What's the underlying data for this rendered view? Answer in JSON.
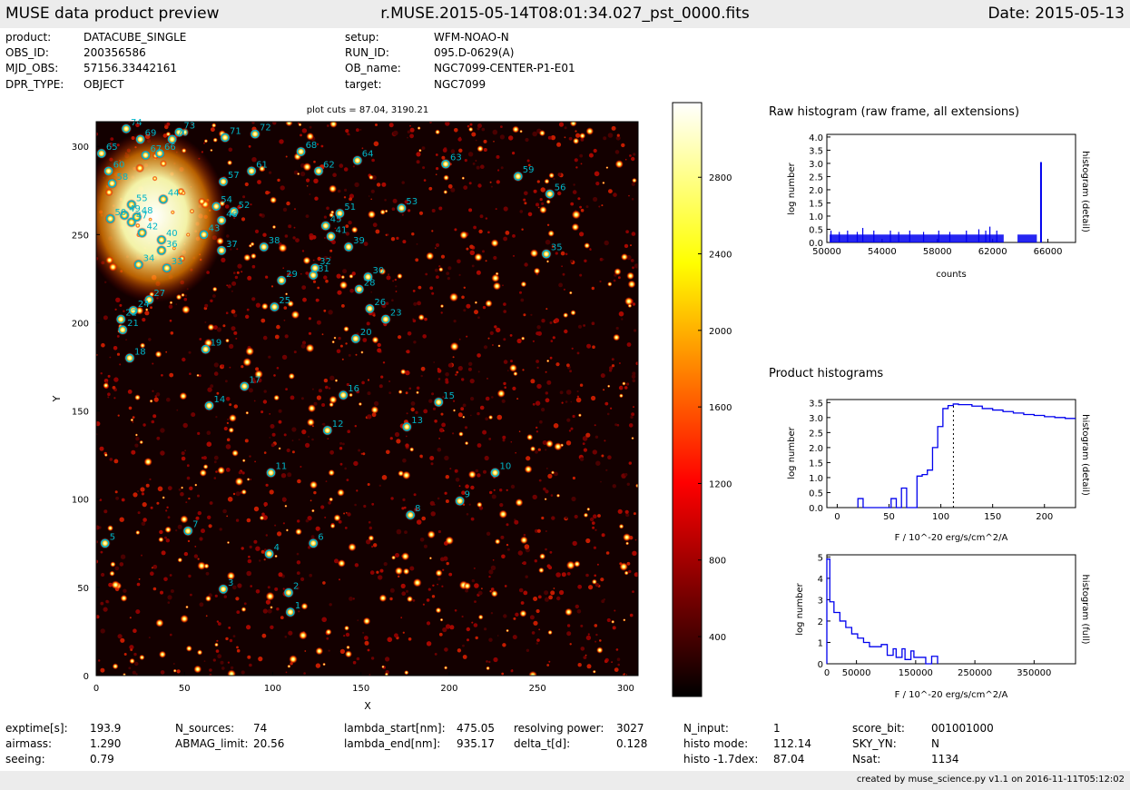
{
  "header": {
    "left": "MUSE data product preview",
    "center": "r.MUSE.2015-05-14T08:01:34.027_pst_0000.fits",
    "right": "Date: 2015-05-13"
  },
  "meta": {
    "left": [
      {
        "k": "product:",
        "v": "DATACUBE_SINGLE"
      },
      {
        "k": "OBS_ID:",
        "v": "200356586"
      },
      {
        "k": "MJD_OBS:",
        "v": "57156.33442161"
      },
      {
        "k": "DPR_TYPE:",
        "v": "OBJECT"
      }
    ],
    "right": [
      {
        "k": "setup:",
        "v": "WFM-NOAO-N"
      },
      {
        "k": "RUN_ID:",
        "v": "095.D-0629(A)"
      },
      {
        "k": "OB_name:",
        "v": "NGC7099-CENTER-P1-E01"
      },
      {
        "k": "target:",
        "v": "NGC7099"
      }
    ]
  },
  "footer_stats": [
    {
      "k": "exptime[s]:",
      "v": "193.9"
    },
    {
      "k": "airmass:",
      "v": "1.290"
    },
    {
      "k": "seeing:",
      "v": "0.79"
    },
    {
      "k": "N_sources:",
      "v": "74"
    },
    {
      "k": "ABMAG_limit:",
      "v": "20.56"
    },
    {
      "k": "lambda_start[nm]:",
      "v": "475.05"
    },
    {
      "k": "lambda_end[nm]:",
      "v": "935.17"
    },
    {
      "k": "resolving power:",
      "v": "3027"
    },
    {
      "k": "delta_t[d]:",
      "v": "0.128"
    },
    {
      "k": "N_input:",
      "v": "1"
    },
    {
      "k": "histo mode:",
      "v": "112.14"
    },
    {
      "k": "histo -1.7dex:",
      "v": "87.04"
    },
    {
      "k": "score_bit:",
      "v": "001001000"
    },
    {
      "k": "SKY_YN:",
      "v": "N"
    },
    {
      "k": "Nsat:",
      "v": "1134"
    }
  ],
  "credit": "created by muse_science.py v1.1 on 2016-11-11T05:12:02",
  "colors": {
    "marker": "#00b5c8",
    "histogram": "#0000ee",
    "bar_bg": "#ececec"
  },
  "chart_data": [
    {
      "type": "heatmap",
      "title": "plot cuts = 87.04, 3190.21",
      "xlabel": "X",
      "ylabel": "Y",
      "xlim": [
        0,
        307
      ],
      "ylim": [
        0,
        314
      ],
      "xticks": [
        0,
        50,
        100,
        150,
        200,
        250,
        300
      ],
      "yticks": [
        0,
        50,
        100,
        150,
        200,
        250,
        300
      ],
      "colormap": "hot",
      "colorbar": {
        "min": 87.04,
        "max": 3190.21,
        "ticks": [
          400,
          800,
          1200,
          1600,
          2000,
          2400,
          2800
        ]
      },
      "sources": [
        {
          "id": 1,
          "x": 110,
          "y": 36
        },
        {
          "id": 2,
          "x": 109,
          "y": 47
        },
        {
          "id": 3,
          "x": 72,
          "y": 49
        },
        {
          "id": 4,
          "x": 98,
          "y": 69
        },
        {
          "id": 5,
          "x": 5,
          "y": 75
        },
        {
          "id": 6,
          "x": 123,
          "y": 75
        },
        {
          "id": 7,
          "x": 52,
          "y": 82
        },
        {
          "id": 8,
          "x": 178,
          "y": 91
        },
        {
          "id": 9,
          "x": 206,
          "y": 99
        },
        {
          "id": 10,
          "x": 226,
          "y": 115
        },
        {
          "id": 11,
          "x": 99,
          "y": 115
        },
        {
          "id": 12,
          "x": 131,
          "y": 139
        },
        {
          "id": 13,
          "x": 176,
          "y": 141
        },
        {
          "id": 14,
          "x": 64,
          "y": 153
        },
        {
          "id": 15,
          "x": 194,
          "y": 155
        },
        {
          "id": 16,
          "x": 140,
          "y": 159
        },
        {
          "id": 17,
          "x": 84,
          "y": 164
        },
        {
          "id": 18,
          "x": 19,
          "y": 180
        },
        {
          "id": 19,
          "x": 62,
          "y": 185
        },
        {
          "id": 20,
          "x": 147,
          "y": 191
        },
        {
          "id": 21,
          "x": 15,
          "y": 196
        },
        {
          "id": 22,
          "x": 14,
          "y": 202
        },
        {
          "id": 23,
          "x": 164,
          "y": 202
        },
        {
          "id": 24,
          "x": 21,
          "y": 207
        },
        {
          "id": 25,
          "x": 101,
          "y": 209
        },
        {
          "id": 26,
          "x": 155,
          "y": 208
        },
        {
          "id": 27,
          "x": 30,
          "y": 213
        },
        {
          "id": 28,
          "x": 149,
          "y": 219
        },
        {
          "id": 29,
          "x": 105,
          "y": 224
        },
        {
          "id": 30,
          "x": 154,
          "y": 226
        },
        {
          "id": 31,
          "x": 123,
          "y": 227
        },
        {
          "id": 32,
          "x": 124,
          "y": 231
        },
        {
          "id": 33,
          "x": 40,
          "y": 231
        },
        {
          "id": 34,
          "x": 24,
          "y": 233
        },
        {
          "id": 35,
          "x": 255,
          "y": 239
        },
        {
          "id": 36,
          "x": 37,
          "y": 241
        },
        {
          "id": 37,
          "x": 71,
          "y": 241
        },
        {
          "id": 38,
          "x": 95,
          "y": 243
        },
        {
          "id": 39,
          "x": 143,
          "y": 243
        },
        {
          "id": 40,
          "x": 37,
          "y": 247
        },
        {
          "id": 41,
          "x": 133,
          "y": 249
        },
        {
          "id": 42,
          "x": 26,
          "y": 251
        },
        {
          "id": 43,
          "x": 61,
          "y": 250
        },
        {
          "id": 44,
          "x": 38,
          "y": 270
        },
        {
          "id": 45,
          "x": 130,
          "y": 255
        },
        {
          "id": 46,
          "x": 71,
          "y": 258
        },
        {
          "id": 47,
          "x": 20,
          "y": 257
        },
        {
          "id": 48,
          "x": 23,
          "y": 260
        },
        {
          "id": 49,
          "x": 16,
          "y": 261
        },
        {
          "id": 50,
          "x": 8,
          "y": 259
        },
        {
          "id": 51,
          "x": 138,
          "y": 262
        },
        {
          "id": 52,
          "x": 78,
          "y": 263
        },
        {
          "id": 53,
          "x": 173,
          "y": 265
        },
        {
          "id": 54,
          "x": 68,
          "y": 266
        },
        {
          "id": 55,
          "x": 20,
          "y": 267
        },
        {
          "id": 56,
          "x": 257,
          "y": 273
        },
        {
          "id": 57,
          "x": 72,
          "y": 280
        },
        {
          "id": 58,
          "x": 9,
          "y": 279
        },
        {
          "id": 59,
          "x": 239,
          "y": 283
        },
        {
          "id": 60,
          "x": 7,
          "y": 286
        },
        {
          "id": 61,
          "x": 88,
          "y": 286
        },
        {
          "id": 62,
          "x": 126,
          "y": 286
        },
        {
          "id": 63,
          "x": 198,
          "y": 290
        },
        {
          "id": 64,
          "x": 148,
          "y": 292
        },
        {
          "id": 65,
          "x": 3,
          "y": 296
        },
        {
          "id": 66,
          "x": 36,
          "y": 296
        },
        {
          "id": 67,
          "x": 28,
          "y": 295
        },
        {
          "id": 68,
          "x": 116,
          "y": 297
        },
        {
          "id": 69,
          "x": 25,
          "y": 304
        },
        {
          "id": 70,
          "x": 43,
          "y": 304
        },
        {
          "id": 71,
          "x": 73,
          "y": 305
        },
        {
          "id": 72,
          "x": 90,
          "y": 307
        },
        {
          "id": 73,
          "x": 47,
          "y": 308
        },
        {
          "id": 74,
          "x": 17,
          "y": 310
        }
      ]
    },
    {
      "type": "bar",
      "title": "Raw histogram (raw frame, all extensions)",
      "xlabel": "counts",
      "ylabel": "log number",
      "ylabel_right": "histogram (detail)",
      "xlim": [
        50000,
        68000
      ],
      "ylim": [
        0,
        4.1
      ],
      "xticks": [
        50000,
        54000,
        58000,
        62000,
        66000
      ],
      "yticks": [
        0.0,
        0.5,
        1.0,
        1.5,
        2.0,
        2.5,
        3.0,
        3.5,
        4.0
      ],
      "segments": [
        [
          50200,
          62800
        ],
        [
          63800,
          65200
        ]
      ],
      "baseline": 0.3,
      "spikes": [
        {
          "x": 50300,
          "y": 0.45
        },
        {
          "x": 50900,
          "y": 0.4
        },
        {
          "x": 51500,
          "y": 0.45
        },
        {
          "x": 52200,
          "y": 0.4
        },
        {
          "x": 52600,
          "y": 0.55
        },
        {
          "x": 53400,
          "y": 0.45
        },
        {
          "x": 54600,
          "y": 0.45
        },
        {
          "x": 55200,
          "y": 0.4
        },
        {
          "x": 56000,
          "y": 0.45
        },
        {
          "x": 57000,
          "y": 0.4
        },
        {
          "x": 58100,
          "y": 0.45
        },
        {
          "x": 58900,
          "y": 0.4
        },
        {
          "x": 60100,
          "y": 0.45
        },
        {
          "x": 61000,
          "y": 0.5
        },
        {
          "x": 61500,
          "y": 0.45
        },
        {
          "x": 61800,
          "y": 0.6
        },
        {
          "x": 62300,
          "y": 0.45
        }
      ],
      "peak": {
        "x": 65500,
        "y": 3.05
      }
    },
    {
      "type": "line",
      "title": "Product histograms",
      "xlabel": "F / 10^-20 erg/s/cm^2/A",
      "ylabel": "log number",
      "ylabel_right": "histogram (detail)",
      "xlim": [
        -10,
        230
      ],
      "ylim": [
        0,
        3.6
      ],
      "xticks": [
        0,
        50,
        100,
        150,
        200
      ],
      "yticks": [
        0.0,
        0.5,
        1.0,
        1.5,
        2.0,
        2.5,
        3.0,
        3.5
      ],
      "step": "post",
      "x": [
        20,
        25,
        52,
        57,
        62,
        67,
        77,
        82,
        87,
        92,
        97,
        102,
        107,
        112,
        117,
        130,
        140,
        150,
        160,
        170,
        180,
        190,
        200,
        210,
        220,
        230
      ],
      "y": [
        0.3,
        0,
        0.3,
        0,
        0.65,
        0,
        1.05,
        1.1,
        1.25,
        2.0,
        2.7,
        3.3,
        3.4,
        3.45,
        3.43,
        3.38,
        3.3,
        3.25,
        3.2,
        3.15,
        3.1,
        3.07,
        3.03,
        3.0,
        2.97,
        2.97
      ],
      "marker_x": 112.14
    },
    {
      "type": "line",
      "xlabel": "F / 10^-20 erg/s/cm^2/A",
      "ylabel": "log number",
      "ylabel_right": "histogram (full)",
      "xlim": [
        0,
        420000
      ],
      "ylim": [
        0,
        5.1
      ],
      "xticks": [
        0,
        50000,
        150000,
        250000,
        350000
      ],
      "yticks": [
        0,
        1,
        2,
        3,
        4,
        5
      ],
      "step": "post",
      "x": [
        0,
        5000,
        12000,
        22000,
        32000,
        42000,
        52000,
        62000,
        72000,
        82000,
        92000,
        102000,
        112000,
        117000,
        127000,
        132000,
        142000,
        147000,
        157000,
        167000,
        177000,
        182000,
        187000
      ],
      "y": [
        4.9,
        2.9,
        2.4,
        2.0,
        1.7,
        1.4,
        1.2,
        1.0,
        0.8,
        0.8,
        0.9,
        0.4,
        0.7,
        0.3,
        0.7,
        0.2,
        0.6,
        0.3,
        0.3,
        0.0,
        0.35,
        0.35,
        0.0
      ]
    }
  ]
}
